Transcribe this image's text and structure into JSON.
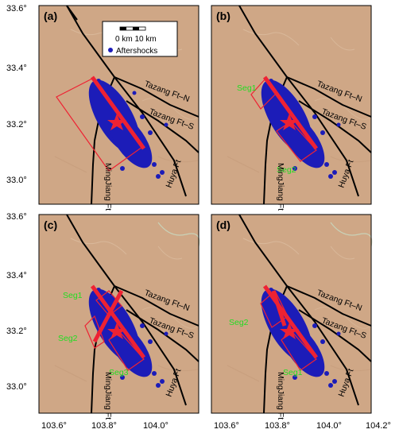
{
  "map": {
    "lat_ticks": [
      "33.6°",
      "33.4°",
      "33.2°",
      "33.0°"
    ],
    "lon_ticks": [
      "103.6°",
      "103.8°",
      "104.0°",
      "104.2°"
    ],
    "legend": {
      "scale": "0 km 10 km",
      "aftershocks": "Aftershocks"
    },
    "faults": {
      "tazang_n": "Tazang Ft–N",
      "tazang_s": "Tazang Ft–S",
      "minjiang": "MingJiang Ft",
      "huya": "Huya Ft"
    },
    "panels": [
      {
        "label": "(a)",
        "segments": []
      },
      {
        "label": "(b)",
        "segments": [
          "Seg1",
          "Seg2"
        ]
      },
      {
        "label": "(c)",
        "segments": [
          "Seg1",
          "Seg2",
          "Seg3"
        ]
      },
      {
        "label": "(d)",
        "segments": [
          "Seg2",
          "Seg1"
        ]
      }
    ],
    "colors": {
      "terrain": "#cfa786",
      "aftershocks": "#1c1cb8",
      "rupture": "#ee2233",
      "segment_label": "#22dd22",
      "fault_line": "#000000"
    }
  }
}
